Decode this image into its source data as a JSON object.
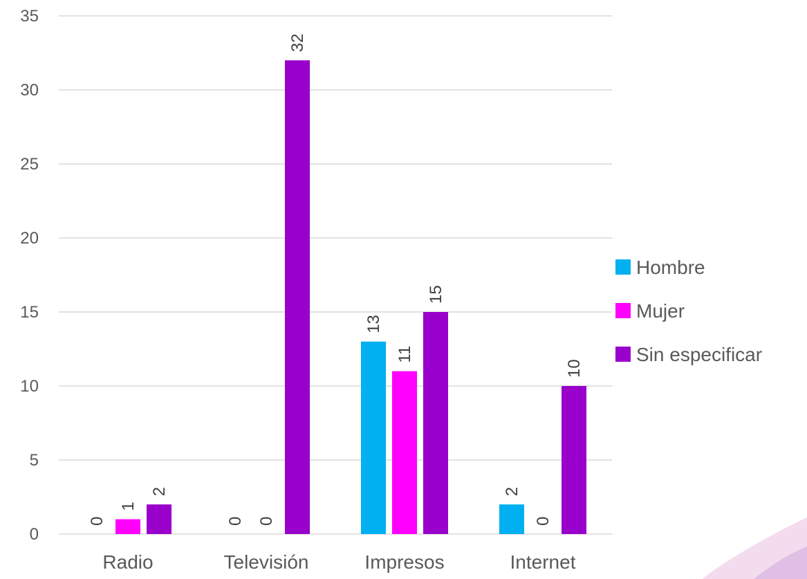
{
  "chart_data": {
    "type": "bar",
    "categories": [
      "Radio",
      "Televisión",
      "Impresos",
      "Internet"
    ],
    "series": [
      {
        "name": "Hombre",
        "values": [
          0,
          0,
          13,
          2
        ],
        "color": "#00B0F0"
      },
      {
        "name": "Mujer",
        "values": [
          1,
          0,
          11,
          0
        ],
        "color": "#FF00FF"
      },
      {
        "name": "Sin especificar",
        "values": [
          2,
          32,
          15,
          10
        ],
        "color": "#9900CC"
      }
    ],
    "ylim": [
      0,
      35
    ],
    "yticks": [
      0,
      5,
      10,
      15,
      20,
      25,
      30,
      35
    ],
    "grid": true,
    "legend_position": "right",
    "data_labels": true,
    "title": "",
    "xlabel": "",
    "ylabel": ""
  }
}
